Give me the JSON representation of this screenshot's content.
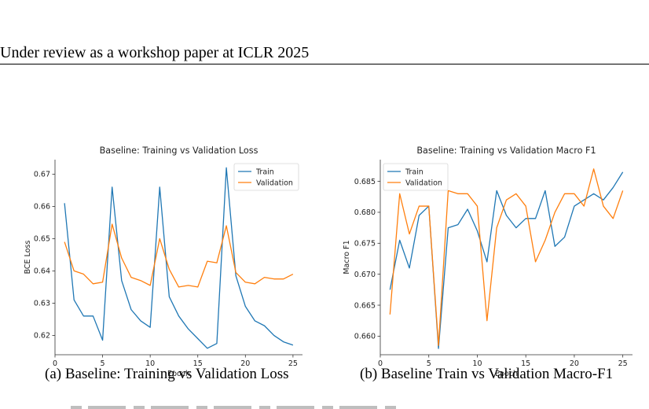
{
  "header": {
    "text": "Under review as a workshop paper at ICLR 2025"
  },
  "figures": [
    {
      "caption": "(a)  Baseline: Training vs Validation Loss"
    },
    {
      "caption": "(b)  Baseline Train vs Validation Macro-F1"
    }
  ],
  "chart_data": [
    {
      "type": "line",
      "title": "Baseline: Training vs Validation Loss",
      "xlabel": "Epoch",
      "ylabel": "BCE Loss",
      "xlim": [
        0,
        26
      ],
      "ylim": [
        0.614,
        0.6745
      ],
      "xticks": [
        0,
        5,
        10,
        15,
        20,
        25
      ],
      "yticks": [
        0.62,
        0.63,
        0.64,
        0.65,
        0.66,
        0.67
      ],
      "ytick_labels": [
        "0.62",
        "0.63",
        "0.64",
        "0.65",
        "0.66",
        "0.67"
      ],
      "legend_position": "top-right",
      "x": [
        1,
        2,
        3,
        4,
        5,
        6,
        7,
        8,
        9,
        10,
        11,
        12,
        13,
        14,
        15,
        16,
        17,
        18,
        19,
        20,
        21,
        22,
        23,
        24,
        25
      ],
      "series": [
        {
          "name": "Train",
          "color": "#1f77b4",
          "values": [
            0.661,
            0.631,
            0.626,
            0.626,
            0.6185,
            0.666,
            0.637,
            0.628,
            0.6245,
            0.6225,
            0.666,
            0.632,
            0.626,
            0.622,
            0.619,
            0.616,
            0.6175,
            0.672,
            0.6385,
            0.629,
            0.6245,
            0.623,
            0.62,
            0.618,
            0.617
          ]
        },
        {
          "name": "Validation",
          "color": "#ff7f0e",
          "values": [
            0.649,
            0.64,
            0.639,
            0.636,
            0.6365,
            0.6545,
            0.644,
            0.638,
            0.637,
            0.6355,
            0.65,
            0.6405,
            0.635,
            0.6355,
            0.635,
            0.643,
            0.6425,
            0.654,
            0.6395,
            0.6365,
            0.636,
            0.638,
            0.6375,
            0.6375,
            0.639
          ]
        }
      ]
    },
    {
      "type": "line",
      "title": "Baseline: Training vs Validation Macro F1",
      "xlabel": "Epoch",
      "ylabel": "Macro F1",
      "xlim": [
        0,
        26
      ],
      "ylim": [
        0.657,
        0.6885
      ],
      "xticks": [
        0,
        5,
        10,
        15,
        20,
        25
      ],
      "yticks": [
        0.66,
        0.665,
        0.67,
        0.675,
        0.68,
        0.685
      ],
      "ytick_labels": [
        "0.660",
        "0.665",
        "0.670",
        "0.675",
        "0.680",
        "0.685"
      ],
      "legend_position": "top-left",
      "x": [
        1,
        2,
        3,
        4,
        5,
        6,
        7,
        8,
        9,
        10,
        11,
        12,
        13,
        14,
        15,
        16,
        17,
        18,
        19,
        20,
        21,
        22,
        23,
        24,
        25
      ],
      "series": [
        {
          "name": "Train",
          "color": "#1f77b4",
          "values": [
            0.6675,
            0.6755,
            0.671,
            0.6795,
            0.681,
            0.658,
            0.6775,
            0.678,
            0.6805,
            0.677,
            0.672,
            0.6835,
            0.6795,
            0.6775,
            0.679,
            0.679,
            0.6835,
            0.6745,
            0.676,
            0.681,
            0.682,
            0.683,
            0.682,
            0.684,
            0.6865
          ]
        },
        {
          "name": "Validation",
          "color": "#ff7f0e",
          "values": [
            0.6635,
            0.683,
            0.6765,
            0.681,
            0.681,
            0.6585,
            0.6835,
            0.683,
            0.683,
            0.681,
            0.6625,
            0.6775,
            0.682,
            0.683,
            0.681,
            0.672,
            0.6755,
            0.68,
            0.683,
            0.683,
            0.681,
            0.687,
            0.681,
            0.679,
            0.6835
          ]
        }
      ]
    }
  ]
}
